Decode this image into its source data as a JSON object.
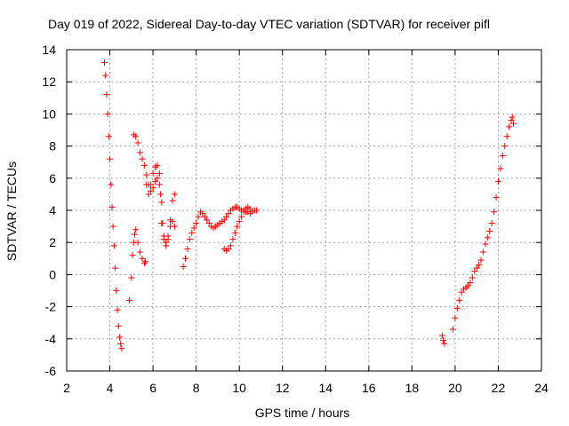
{
  "chart_data": {
    "type": "scatter",
    "title": "Day 019 of 2022, Sidereal Day-to-day VTEC variation (SDTVAR) for receiver pifl",
    "xlabel": "GPS time / hours",
    "ylabel": "SDTVAR / TECUs",
    "xlim": [
      2,
      24
    ],
    "ylim": [
      -6,
      14
    ],
    "xticks": [
      2,
      4,
      6,
      8,
      10,
      12,
      14,
      16,
      18,
      20,
      22,
      24
    ],
    "yticks": [
      -6,
      -4,
      -2,
      0,
      2,
      4,
      6,
      8,
      10,
      12,
      14
    ],
    "grid": true,
    "marker": "plus",
    "color": "#ff0000",
    "series": [
      {
        "name": "segment-1",
        "x": [
          3.75,
          3.8,
          3.85,
          3.9,
          3.95,
          4.0,
          4.05,
          4.1,
          4.15,
          4.2,
          4.25,
          4.3,
          4.35,
          4.4,
          4.45,
          4.5,
          4.55
        ],
        "y": [
          13.2,
          12.4,
          11.2,
          10.0,
          8.6,
          7.2,
          5.6,
          4.2,
          3.0,
          1.8,
          0.4,
          -1.0,
          -2.2,
          -3.2,
          -3.9,
          -4.3,
          -4.6
        ]
      },
      {
        "name": "segment-2",
        "x": [
          4.9,
          5.0,
          5.05,
          5.1,
          5.15,
          5.2,
          5.3,
          5.4,
          5.5,
          5.6,
          5.65,
          5.7,
          5.8,
          5.9,
          6.0,
          6.1,
          6.2,
          6.3,
          6.4,
          6.45,
          6.5,
          6.6,
          6.7,
          6.8,
          6.9,
          7.0
        ],
        "y": [
          -1.6,
          -0.2,
          1.2,
          2.0,
          2.5,
          2.8,
          2.0,
          1.4,
          1.0,
          0.7,
          0.8,
          6.2,
          5.6,
          5.2,
          5.4,
          5.8,
          6.0,
          5.6,
          4.5,
          3.2,
          2.4,
          2.0,
          2.4,
          3.4,
          4.6,
          5.0
        ]
      },
      {
        "name": "segment-3",
        "x": [
          5.1,
          5.2,
          5.3,
          5.4,
          5.5,
          5.6,
          5.7,
          5.8,
          5.9,
          6.0,
          6.1,
          6.2,
          6.3,
          6.35,
          6.4,
          6.5,
          6.6,
          6.7,
          6.8,
          6.9,
          7.0
        ],
        "y": [
          8.7,
          8.6,
          8.2,
          7.6,
          7.2,
          6.8,
          5.6,
          5.0,
          5.6,
          6.3,
          6.7,
          6.8,
          6.3,
          5.0,
          3.2,
          2.2,
          1.8,
          2.2,
          3.0,
          3.3,
          3.0
        ]
      },
      {
        "name": "segment-4",
        "x": [
          7.4,
          7.5,
          7.6,
          7.7,
          7.8,
          7.9,
          8.0,
          8.1,
          8.2,
          8.3,
          8.4,
          8.5,
          8.6,
          8.7,
          8.8,
          8.9,
          9.0,
          9.1,
          9.2,
          9.3,
          9.4,
          9.5,
          9.6,
          9.7,
          9.8,
          9.9,
          10.0,
          10.1,
          10.2,
          10.3,
          10.4,
          10.5,
          10.6,
          10.7,
          10.8
        ],
        "y": [
          0.5,
          1.0,
          1.6,
          2.2,
          2.6,
          2.9,
          3.2,
          3.6,
          3.9,
          3.8,
          3.6,
          3.4,
          3.2,
          3.0,
          2.9,
          3.0,
          3.1,
          3.2,
          3.3,
          3.4,
          3.6,
          3.8,
          4.0,
          4.1,
          4.2,
          4.2,
          4.1,
          4.0,
          4.0,
          3.9,
          3.9,
          3.8,
          3.9,
          4.0,
          4.0
        ]
      },
      {
        "name": "segment-5",
        "x": [
          9.3,
          9.4,
          9.5,
          9.6,
          9.7,
          9.8,
          9.9,
          10.0,
          10.1,
          10.2,
          10.3,
          10.4,
          10.5
        ],
        "y": [
          1.6,
          1.5,
          1.6,
          1.8,
          2.2,
          2.6,
          3.0,
          3.3,
          3.6,
          3.9,
          4.1,
          4.2,
          4.1
        ]
      },
      {
        "name": "segment-6",
        "x": [
          19.4,
          19.45,
          19.5
        ],
        "y": [
          -3.8,
          -4.1,
          -4.3
        ]
      },
      {
        "name": "segment-7",
        "x": [
          19.9,
          20.0,
          20.1,
          20.2,
          20.3,
          20.4,
          20.5,
          20.6,
          20.7,
          20.8,
          20.9,
          21.0,
          21.1,
          21.2,
          21.3,
          21.4,
          21.5,
          21.6,
          21.7,
          21.8,
          21.9,
          22.0,
          22.1,
          22.2,
          22.3,
          22.4,
          22.5,
          22.6,
          22.65,
          22.7
        ],
        "y": [
          -3.4,
          -2.7,
          -2.1,
          -1.6,
          -1.1,
          -0.9,
          -0.8,
          -0.7,
          -0.5,
          -0.2,
          0.2,
          0.4,
          0.6,
          0.9,
          1.4,
          1.9,
          2.3,
          2.7,
          3.2,
          3.9,
          4.8,
          5.8,
          6.6,
          7.4,
          8.0,
          8.6,
          9.2,
          9.6,
          9.8,
          9.4
        ]
      }
    ]
  }
}
